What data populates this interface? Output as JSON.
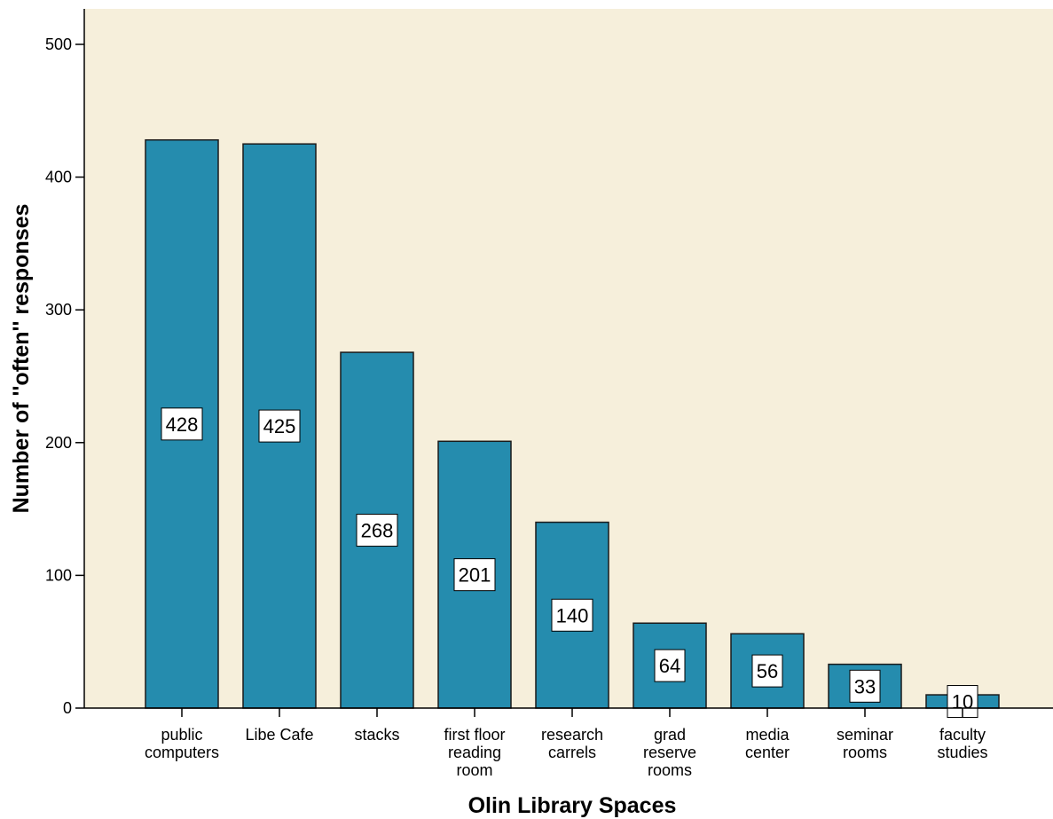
{
  "colors": {
    "plot_background": "#f6efdb",
    "bar_fill": "#258cae",
    "bar_stroke": "#1a1a1a",
    "label_box": "#ffffff"
  },
  "chart_data": {
    "type": "bar",
    "categories": [
      [
        "public",
        "computers"
      ],
      [
        "Libe Cafe"
      ],
      [
        "stacks"
      ],
      [
        "first floor",
        "reading",
        "room"
      ],
      [
        "research",
        "carrels"
      ],
      [
        "grad",
        "reserve",
        "rooms"
      ],
      [
        "media",
        "center"
      ],
      [
        "seminar",
        "rooms"
      ],
      [
        "faculty",
        "studies"
      ]
    ],
    "values": [
      428,
      425,
      268,
      201,
      140,
      64,
      56,
      33,
      10
    ],
    "data_labels": [
      "428",
      "425",
      "268",
      "201",
      "140",
      "64",
      "56",
      "33",
      "10"
    ],
    "xlabel": "Olin Library Spaces",
    "ylabel": "Number of ''often'' responses",
    "ylim": [
      0,
      525
    ],
    "yticks": [
      0,
      100,
      200,
      300,
      400,
      500
    ],
    "grid": false,
    "legend": "none"
  }
}
